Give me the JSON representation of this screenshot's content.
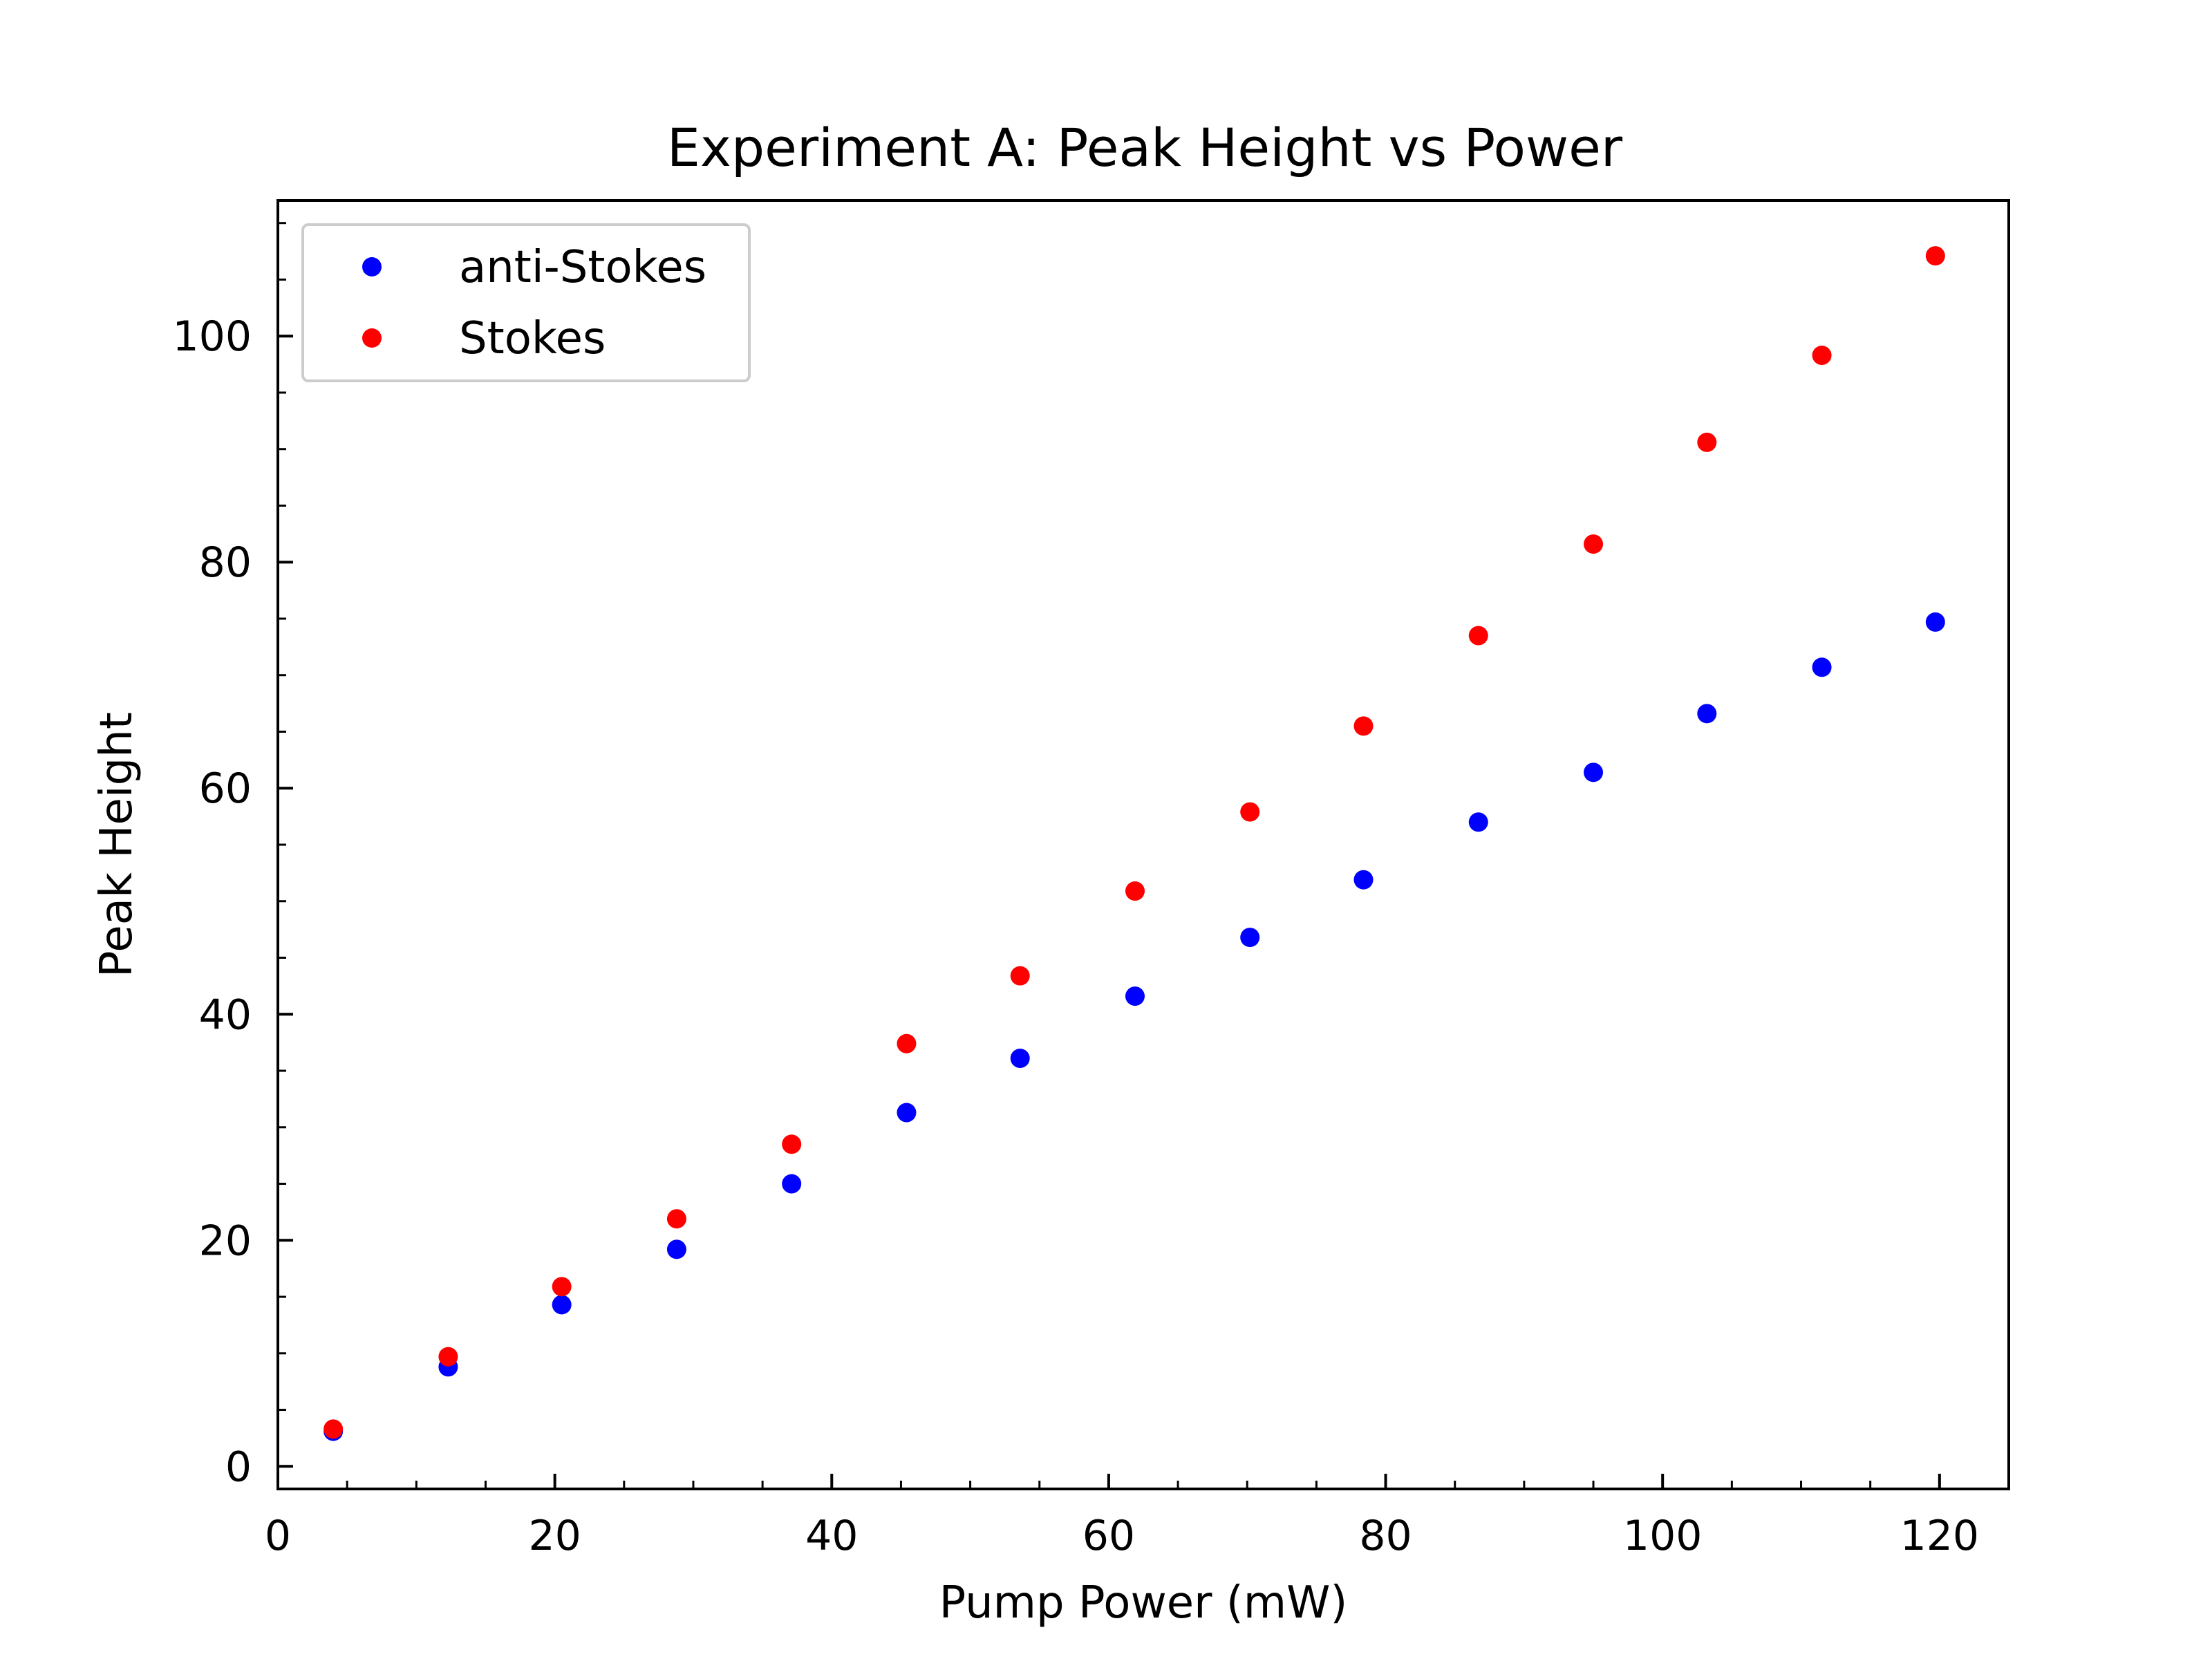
{
  "chart_data": {
    "type": "scatter",
    "title": "Experiment A: Peak Height vs Power",
    "xlabel": "Pump Power (mW)",
    "ylabel": "Peak Height",
    "xlim": [
      0,
      125
    ],
    "ylim": [
      -2,
      112
    ],
    "xticks": [
      0,
      20,
      40,
      60,
      80,
      100,
      120
    ],
    "yticks": [
      0,
      20,
      40,
      60,
      80,
      100
    ],
    "legend_position": "top-left",
    "grid": false,
    "x": [
      4,
      12.3,
      20.5,
      28.8,
      37.1,
      45.4,
      53.6,
      61.9,
      70.2,
      78.4,
      86.7,
      95,
      103.2,
      111.5,
      119.7
    ],
    "series": [
      {
        "name": "anti-Stokes",
        "color": "#0000ff",
        "values": [
          3.1,
          8.8,
          14.3,
          19.2,
          25.0,
          31.3,
          36.1,
          41.6,
          46.8,
          51.9,
          57.0,
          61.4,
          66.6,
          70.7,
          74.7
        ]
      },
      {
        "name": "Stokes",
        "color": "#ff0000",
        "values": [
          3.3,
          9.7,
          15.9,
          21.9,
          28.5,
          37.4,
          43.4,
          50.9,
          57.9,
          65.5,
          73.5,
          81.6,
          90.6,
          98.3,
          107.1
        ]
      }
    ]
  }
}
